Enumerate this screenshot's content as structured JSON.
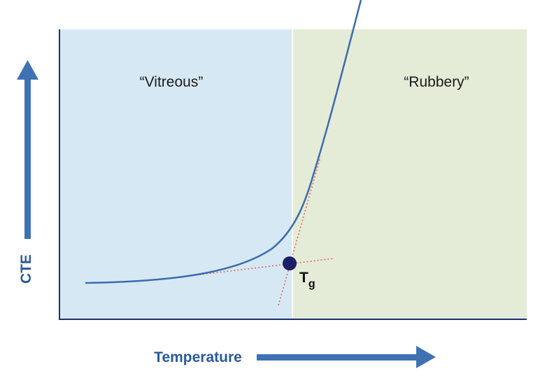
{
  "regions": [
    {
      "label": "“Vitreous”"
    },
    {
      "label": "“Rubbery”"
    }
  ],
  "point": {
    "label": "T",
    "subscript": "g"
  },
  "axes": {
    "y_label": "CTE",
    "x_label": "Temperature"
  }
}
